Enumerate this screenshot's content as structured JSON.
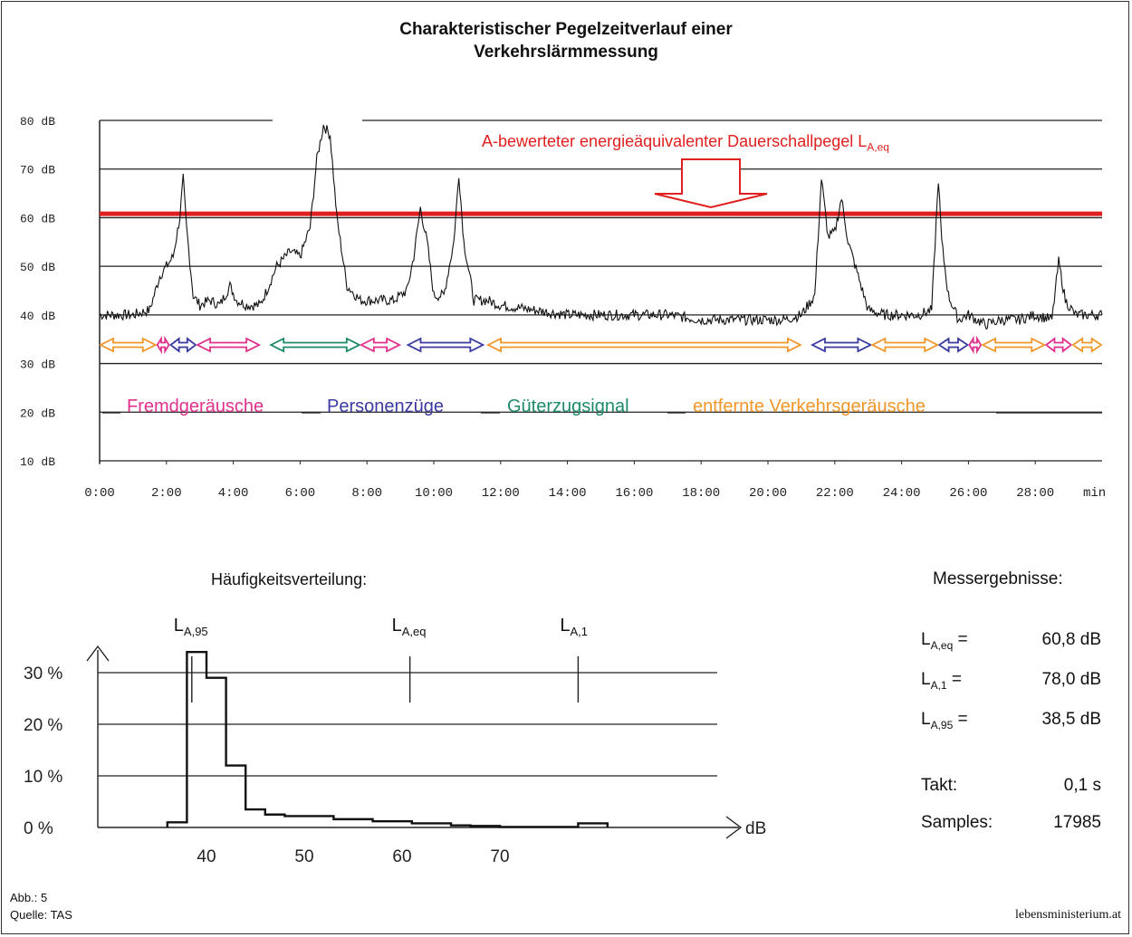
{
  "title_line1": "Charakteristischer Pegelzeitverlauf einer",
  "title_line2": "Verkehrslärmmessung",
  "leq_label_main": "A-bewerteter energieäquivalenter Dauerschallpegel L",
  "leq_label_sub": "A,eq",
  "legend": [
    {
      "label": "Fremdgeräusche",
      "color": "#e0308c"
    },
    {
      "label": "Personenzüge",
      "color": "#3a3aa0"
    },
    {
      "label": "Güterzugsignal",
      "color": "#1e8a6a"
    },
    {
      "label": "entfernte Verkehrsgeräusche",
      "color": "#f0962a"
    }
  ],
  "hist_title": "Häufigkeitsverteilung:",
  "hist_markers": [
    {
      "main": "L",
      "sub": "A,95",
      "value": 38.5
    },
    {
      "main": "L",
      "sub": "A,eq",
      "value": 60.8
    },
    {
      "main": "L",
      "sub": "A,1",
      "value": 78.0
    }
  ],
  "hist_unit": "dB",
  "results_title": "Messergebnisse:",
  "results": [
    {
      "main": "L",
      "sub": "A,eq",
      "eq": "=",
      "value": "60,8 dB"
    },
    {
      "main": "L",
      "sub": "A,1",
      "eq": "=",
      "value": "78,0 dB"
    },
    {
      "main": "L",
      "sub": "A,95",
      "eq": "=",
      "value": "38,5 dB"
    }
  ],
  "takt_label": "Takt:",
  "takt_value": "0,1 s",
  "samples_label": "Samples:",
  "samples_value": "17985",
  "footer_abb": "Abb.: 5",
  "footer_quelle": "Quelle: TAS",
  "footer_site": "lebensministerium.at",
  "chart_data": [
    {
      "type": "line",
      "title": "Charakteristischer Pegelzeitverlauf einer Verkehrslärmmessung",
      "xlabel": "min",
      "ylim": [
        10,
        80
      ],
      "xlim": [
        0,
        30
      ],
      "y_ticks": [
        "10 dB",
        "20 dB",
        "30 dB",
        "40 dB",
        "50 dB",
        "60 dB",
        "70 dB",
        "80 dB"
      ],
      "x_ticks": [
        "0:00",
        "2:00",
        "4:00",
        "6:00",
        "8:00",
        "10:00",
        "12:00",
        "14:00",
        "16:00",
        "18:00",
        "20:00",
        "22:00",
        "24:00",
        "26:00",
        "28:00"
      ],
      "leq_level": 60.8,
      "series": [
        {
          "x": [
            0,
            0.5,
            1,
            1.5,
            1.8,
            2.0,
            2.2,
            2.4,
            2.5,
            2.6,
            2.8,
            3.0,
            3.3,
            3.6,
            3.9,
            4.1,
            4.4,
            4.8,
            5.0,
            5.3,
            5.7,
            6.0,
            6.3,
            6.5,
            6.7,
            6.9,
            7.1,
            7.4,
            7.8,
            8.3,
            8.8,
            9.2,
            9.4,
            9.6,
            9.8,
            10.0,
            10.3,
            10.6,
            10.75,
            10.9,
            11.2,
            11.6,
            12.0,
            13.0,
            14.0,
            15.0,
            16.0,
            17.0,
            18.0,
            19.0,
            20.0,
            20.5,
            21.0,
            21.4,
            21.6,
            21.8,
            22.0,
            22.2,
            22.4,
            22.7,
            23.0,
            23.5,
            24.0,
            24.5,
            24.9,
            25.1,
            25.2,
            25.4,
            25.7,
            26.0,
            26.5,
            27.0,
            27.5,
            28.0,
            28.5,
            28.7,
            28.9,
            29.2,
            29.6,
            30.0
          ],
          "y": [
            40,
            40,
            40,
            41,
            48,
            50,
            52,
            60,
            68,
            58,
            44,
            42,
            43,
            42,
            46,
            43,
            42,
            42,
            45,
            50,
            53,
            52,
            58,
            72,
            79,
            77,
            60,
            46,
            43,
            43,
            43,
            45,
            52,
            62,
            55,
            44,
            44,
            55,
            69,
            55,
            43,
            43,
            42,
            41,
            40,
            40,
            40,
            40,
            39,
            39,
            39,
            39,
            40,
            44,
            68,
            56,
            57,
            64,
            55,
            48,
            41,
            40,
            40,
            40,
            41,
            68,
            55,
            44,
            39,
            40,
            38,
            39,
            39,
            40,
            39,
            51,
            43,
            40,
            40,
            40
          ]
        }
      ],
      "arrow_bands": [
        {
          "from": 0.0,
          "to": 1.7,
          "category": "entfernte Verkehrsgeräusche"
        },
        {
          "from": 1.7,
          "to": 2.1,
          "category": "Fremdgeräusche"
        },
        {
          "from": 2.1,
          "to": 2.9,
          "category": "Personenzüge"
        },
        {
          "from": 2.9,
          "to": 4.8,
          "category": "Fremdgeräusche"
        },
        {
          "from": 5.1,
          "to": 7.8,
          "category": "Güterzugsignal"
        },
        {
          "from": 7.8,
          "to": 9.0,
          "category": "Fremdgeräusche"
        },
        {
          "from": 9.2,
          "to": 11.5,
          "category": "Personenzüge"
        },
        {
          "from": 11.6,
          "to": 21.0,
          "category": "entfernte Verkehrsgeräusche"
        },
        {
          "from": 21.3,
          "to": 23.1,
          "category": "Personenzüge"
        },
        {
          "from": 23.1,
          "to": 25.1,
          "category": "entfernte Verkehrsgeräusche"
        },
        {
          "from": 25.1,
          "to": 26.0,
          "category": "Personenzüge"
        },
        {
          "from": 26.0,
          "to": 26.4,
          "category": "Fremdgeräusche"
        },
        {
          "from": 26.4,
          "to": 28.3,
          "category": "entfernte Verkehrsgeräusche"
        },
        {
          "from": 28.3,
          "to": 29.1,
          "category": "Fremdgeräusche"
        },
        {
          "from": 29.1,
          "to": 30.0,
          "category": "entfernte Verkehrsgeräusche"
        }
      ]
    },
    {
      "type": "area",
      "title": "Häufigkeitsverteilung:",
      "xlabel": "dB",
      "xlim": [
        30,
        85
      ],
      "ylim": [
        0,
        35
      ],
      "x_ticks": [
        40,
        50,
        60,
        70
      ],
      "y_ticks": [
        "0 %",
        "10 %",
        "20 %",
        "30 %"
      ],
      "steps": [
        {
          "from": 36,
          "to": 38,
          "value": 1.0
        },
        {
          "from": 38,
          "to": 40,
          "value": 34.0
        },
        {
          "from": 40,
          "to": 42,
          "value": 29.0
        },
        {
          "from": 42,
          "to": 44,
          "value": 12.0
        },
        {
          "from": 44,
          "to": 46,
          "value": 3.5
        },
        {
          "from": 46,
          "to": 48,
          "value": 2.5
        },
        {
          "from": 48,
          "to": 53,
          "value": 2.2
        },
        {
          "from": 53,
          "to": 57,
          "value": 1.6
        },
        {
          "from": 57,
          "to": 61,
          "value": 1.2
        },
        {
          "from": 61,
          "to": 65,
          "value": 0.8
        },
        {
          "from": 65,
          "to": 67,
          "value": 0.4
        },
        {
          "from": 67,
          "to": 70,
          "value": 0.3
        },
        {
          "from": 70,
          "to": 78,
          "value": 0.1
        },
        {
          "from": 78,
          "to": 81,
          "value": 0.8
        }
      ]
    }
  ]
}
